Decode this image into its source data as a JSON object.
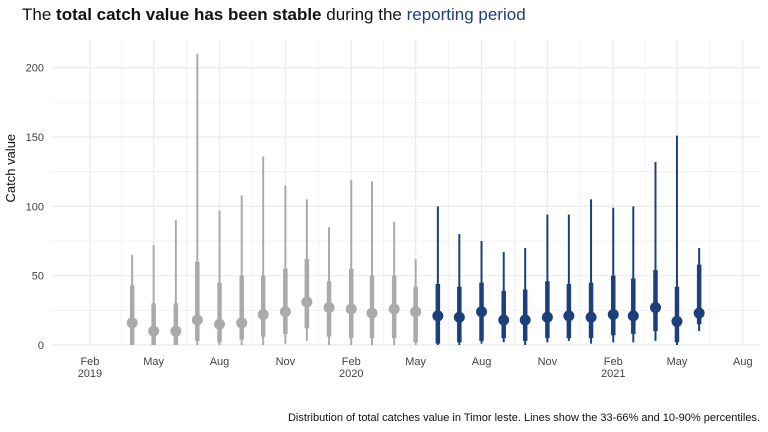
{
  "title": {
    "prefix": "The ",
    "bold": "total catch value has been stable",
    "middle": " during the ",
    "highlight": "reporting period"
  },
  "caption": "Distribution of total catches value in Timor leste. Lines show the 33-66% and 10-90% percentiles.",
  "colors": {
    "past": "#aaaaaa",
    "reporting": "#1d3f7c",
    "grid": "#ebebeb"
  },
  "chart_data": {
    "type": "pointrange",
    "ylabel": "Catch value",
    "ylim": [
      0,
      220
    ],
    "yticks": [
      0,
      50,
      100,
      150,
      200
    ],
    "xlim": [
      "2018-12-10",
      "2021-08-25"
    ],
    "xticks": [
      {
        "date": "2019-02-01",
        "label": "Feb\n2019"
      },
      {
        "date": "2019-05-01",
        "label": "May"
      },
      {
        "date": "2019-08-01",
        "label": "Aug"
      },
      {
        "date": "2019-11-01",
        "label": "Nov"
      },
      {
        "date": "2020-02-01",
        "label": "Feb\n2020"
      },
      {
        "date": "2020-05-01",
        "label": "May"
      },
      {
        "date": "2020-08-01",
        "label": "Aug"
      },
      {
        "date": "2020-11-01",
        "label": "Nov"
      },
      {
        "date": "2021-02-01",
        "label": "Feb\n2021"
      },
      {
        "date": "2021-05-01",
        "label": "May"
      },
      {
        "date": "2021-08-01",
        "label": "Aug"
      }
    ],
    "series": [
      {
        "group": "past",
        "points": [
          {
            "date": "2019-04-01",
            "median": 16,
            "p33": 0,
            "p66": 43,
            "p10": 0,
            "p90": 65
          },
          {
            "date": "2019-05-01",
            "median": 10,
            "p33": 0,
            "p66": 30,
            "p10": 0,
            "p90": 72
          },
          {
            "date": "2019-06-01",
            "median": 10,
            "p33": 0,
            "p66": 30,
            "p10": 0,
            "p90": 90
          },
          {
            "date": "2019-07-01",
            "median": 18,
            "p33": 3,
            "p66": 60,
            "p10": 0,
            "p90": 210
          },
          {
            "date": "2019-08-01",
            "median": 15,
            "p33": 2,
            "p66": 45,
            "p10": 0,
            "p90": 97
          },
          {
            "date": "2019-09-01",
            "median": 16,
            "p33": 4,
            "p66": 50,
            "p10": 0,
            "p90": 108
          },
          {
            "date": "2019-10-01",
            "median": 22,
            "p33": 6,
            "p66": 50,
            "p10": 0,
            "p90": 136
          },
          {
            "date": "2019-11-01",
            "median": 24,
            "p33": 8,
            "p66": 55,
            "p10": 1,
            "p90": 115
          },
          {
            "date": "2019-12-01",
            "median": 31,
            "p33": 12,
            "p66": 62,
            "p10": 3,
            "p90": 105
          },
          {
            "date": "2020-01-01",
            "median": 27,
            "p33": 6,
            "p66": 46,
            "p10": 0,
            "p90": 85
          },
          {
            "date": "2020-02-01",
            "median": 26,
            "p33": 5,
            "p66": 55,
            "p10": 0,
            "p90": 119
          },
          {
            "date": "2020-03-01",
            "median": 23,
            "p33": 5,
            "p66": 50,
            "p10": 0,
            "p90": 118
          },
          {
            "date": "2020-04-01",
            "median": 26,
            "p33": 5,
            "p66": 50,
            "p10": 0,
            "p90": 89
          },
          {
            "date": "2020-05-01",
            "median": 24,
            "p33": 2,
            "p66": 42,
            "p10": 0,
            "p90": 62
          }
        ]
      },
      {
        "group": "reporting",
        "points": [
          {
            "date": "2020-06-01",
            "median": 21,
            "p33": 1,
            "p66": 44,
            "p10": 0,
            "p90": 100
          },
          {
            "date": "2020-07-01",
            "median": 20,
            "p33": 2,
            "p66": 42,
            "p10": 0,
            "p90": 80
          },
          {
            "date": "2020-08-01",
            "median": 24,
            "p33": 3,
            "p66": 45,
            "p10": 1,
            "p90": 75
          },
          {
            "date": "2020-09-01",
            "median": 18,
            "p33": 5,
            "p66": 39,
            "p10": 2,
            "p90": 67
          },
          {
            "date": "2020-10-01",
            "median": 18,
            "p33": 3,
            "p66": 40,
            "p10": 0,
            "p90": 70
          },
          {
            "date": "2020-11-01",
            "median": 20,
            "p33": 5,
            "p66": 46,
            "p10": 2,
            "p90": 94
          },
          {
            "date": "2020-12-01",
            "median": 21,
            "p33": 5,
            "p66": 44,
            "p10": 3,
            "p90": 94
          },
          {
            "date": "2021-01-01",
            "median": 20,
            "p33": 5,
            "p66": 45,
            "p10": 1,
            "p90": 105
          },
          {
            "date": "2021-02-01",
            "median": 22,
            "p33": 7,
            "p66": 50,
            "p10": 2,
            "p90": 99
          },
          {
            "date": "2021-03-01",
            "median": 21,
            "p33": 8,
            "p66": 48,
            "p10": 2,
            "p90": 100
          },
          {
            "date": "2021-04-01",
            "median": 27,
            "p33": 10,
            "p66": 54,
            "p10": 3,
            "p90": 132
          },
          {
            "date": "2021-05-01",
            "median": 17,
            "p33": 2,
            "p66": 42,
            "p10": 0,
            "p90": 151
          },
          {
            "date": "2021-06-01",
            "median": 23,
            "p33": 15,
            "p66": 58,
            "p10": 10,
            "p90": 70
          }
        ]
      }
    ]
  }
}
